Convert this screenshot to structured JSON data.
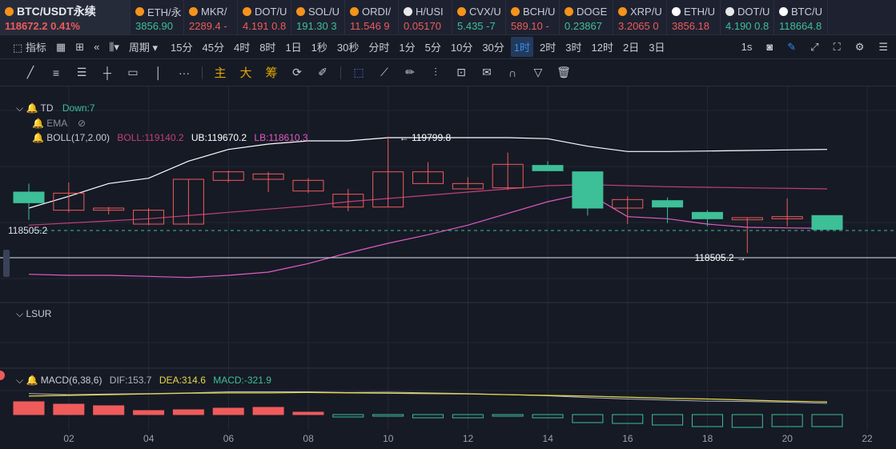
{
  "tickers": [
    {
      "name": "BTC/USDT永续",
      "price": "118672.2",
      "change": "0.41%",
      "dir": "dn",
      "color": "#f7931a",
      "active": true
    },
    {
      "name": "ETH/永",
      "price": "3856.90",
      "change": "",
      "dir": "up",
      "color": "#f7931a"
    },
    {
      "name": "MKR/",
      "price": "2289.4",
      "change": "-",
      "dir": "dn",
      "color": "#f7931a"
    },
    {
      "name": "DOT/U",
      "price": "4.191",
      "change": "0.8",
      "dir": "dn",
      "color": "#f7931a"
    },
    {
      "name": "SOL/U",
      "price": "191.30",
      "change": "3",
      "dir": "up",
      "color": "#f7931a"
    },
    {
      "name": "ORDI/",
      "price": "11.546",
      "change": "9",
      "dir": "dn",
      "color": "#f7931a"
    },
    {
      "name": "H/USI",
      "price": "0.05170",
      "change": "",
      "dir": "dn",
      "color": "#e8e8e8"
    },
    {
      "name": "CVX/U",
      "price": "5.435",
      "change": "-7",
      "dir": "up",
      "color": "#f7931a"
    },
    {
      "name": "BCH/U",
      "price": "589.10",
      "change": "-",
      "dir": "dn",
      "color": "#f7931a"
    },
    {
      "name": "DOGE",
      "price": "0.23867",
      "change": "",
      "dir": "up",
      "color": "#f7931a"
    },
    {
      "name": "XRP/U",
      "price": "3.2065",
      "change": "0",
      "dir": "dn",
      "color": "#f7931a"
    },
    {
      "name": "ETH/U",
      "price": "3856.18",
      "change": "",
      "dir": "dn",
      "color": "#ffffff"
    },
    {
      "name": "DOT/U",
      "price": "4.190",
      "change": "0.8",
      "dir": "up",
      "color": "#e8e8e8"
    },
    {
      "name": "BTC/U",
      "price": "118664.8",
      "change": "",
      "dir": "up",
      "color": "#ffffff"
    }
  ],
  "toolbar": {
    "indicators": "指标",
    "period": "周期",
    "periods": [
      "15分",
      "45分",
      "4时",
      "8时",
      "1日",
      "1秒",
      "30秒",
      "分时",
      "1分",
      "5分",
      "10分",
      "30分",
      "1时",
      "2时",
      "3时",
      "12时",
      "2日",
      "3日"
    ],
    "selected_period": "1时",
    "second_label": "1s"
  },
  "drawbar": {
    "main": "主",
    "big": "大",
    "chip": "筹"
  },
  "legend": {
    "td": "TD",
    "td_value": "Down:7",
    "ema": "EMA",
    "boll": "BOLL(17,2.00)",
    "boll_mid": "BOLL:119140.2",
    "ub": "UB:119670.2",
    "lb": "LB:118610.3",
    "lsur": "LSUR",
    "macd": "MACD(6,38,6)",
    "dif": "DIF:153.7",
    "dea": "DEA:314.6",
    "macd_val": "MACD:-321.9"
  },
  "annotations": {
    "high": "119799.8",
    "low": "118505.2",
    "price_line": "118505.2"
  },
  "colors": {
    "up": "#3dbf98",
    "down": "#ef5b5b",
    "ub": "#ffffff",
    "mid": "#c2407a",
    "lb": "#e05cc4",
    "dea": "#e8d84a",
    "dif": "#b0b4c0"
  },
  "chart_data": {
    "type": "candlestick",
    "title": "BTC/USDT永续 1时",
    "x_tick_labels": [
      "02",
      "04",
      "06",
      "08",
      "10",
      "12",
      "14",
      "16",
      "18",
      "20",
      "22"
    ],
    "ylim": [
      118300,
      119950
    ],
    "candles": [
      {
        "o": 119290,
        "h": 119370,
        "l": 119030,
        "c": 119190
      },
      {
        "o": 119120,
        "h": 119380,
        "l": 119100,
        "c": 119280
      },
      {
        "o": 119120,
        "h": 119150,
        "l": 119080,
        "c": 119140
      },
      {
        "o": 118990,
        "h": 119140,
        "l": 118980,
        "c": 119120
      },
      {
        "o": 118990,
        "h": 119410,
        "l": 118990,
        "c": 119410
      },
      {
        "o": 119400,
        "h": 119490,
        "l": 119380,
        "c": 119480
      },
      {
        "o": 119410,
        "h": 119480,
        "l": 119290,
        "c": 119460
      },
      {
        "o": 119300,
        "h": 119420,
        "l": 119280,
        "c": 119400
      },
      {
        "o": 119150,
        "h": 119320,
        "l": 119110,
        "c": 119270
      },
      {
        "o": 119150,
        "h": 119800,
        "l": 119150,
        "c": 119480
      },
      {
        "o": 119370,
        "h": 119570,
        "l": 119370,
        "c": 119480
      },
      {
        "o": 119320,
        "h": 119430,
        "l": 119330,
        "c": 119370
      },
      {
        "o": 119330,
        "h": 119660,
        "l": 119310,
        "c": 119550
      },
      {
        "o": 119540,
        "h": 119580,
        "l": 119500,
        "c": 119490
      },
      {
        "o": 119480,
        "h": 119480,
        "l": 119070,
        "c": 119140
      },
      {
        "o": 119140,
        "h": 119250,
        "l": 118990,
        "c": 119220
      },
      {
        "o": 119210,
        "h": 119240,
        "l": 119000,
        "c": 119150
      },
      {
        "o": 119100,
        "h": 119120,
        "l": 118970,
        "c": 119040
      },
      {
        "o": 119030,
        "h": 119050,
        "l": 118720,
        "c": 119050
      },
      {
        "o": 119040,
        "h": 119230,
        "l": 118970,
        "c": 119060
      },
      {
        "o": 119070,
        "h": 119070,
        "l": 118940,
        "c": 118940
      }
    ],
    "boll_ub": [
      119140,
      119250,
      119370,
      119420,
      119580,
      119690,
      119740,
      119770,
      119770,
      119800,
      119800,
      119800,
      119800,
      119790,
      119720,
      119670,
      119670,
      119675,
      119680,
      119685,
      119690
    ],
    "boll_mid": [
      118980,
      119000,
      119020,
      119040,
      119070,
      119100,
      119130,
      119160,
      119200,
      119230,
      119260,
      119290,
      119320,
      119350,
      119360,
      119350,
      119340,
      119335,
      119330,
      119325,
      119320
    ],
    "boll_lb": [
      118520,
      118510,
      118510,
      118500,
      118490,
      118510,
      118540,
      118620,
      118720,
      118810,
      118890,
      118980,
      119090,
      119200,
      119280,
      119060,
      119040,
      118990,
      118960,
      118955,
      118950
    ],
    "macd_hist": [
      -16,
      -13,
      -11,
      -5,
      -6,
      -8,
      -9,
      -3,
      3,
      2,
      4,
      4,
      2,
      4,
      10,
      11,
      13,
      15,
      16,
      15,
      15
    ],
    "dif": [
      25,
      22,
      24,
      25,
      27,
      30,
      30,
      30,
      28,
      29,
      27,
      25,
      22,
      19,
      14,
      10,
      7,
      4,
      3,
      1,
      -2
    ],
    "dea": [
      18,
      20,
      22,
      24,
      26,
      27,
      27,
      28,
      27,
      26,
      25,
      24,
      22,
      20,
      18,
      15,
      12,
      10,
      7,
      4,
      2
    ]
  }
}
